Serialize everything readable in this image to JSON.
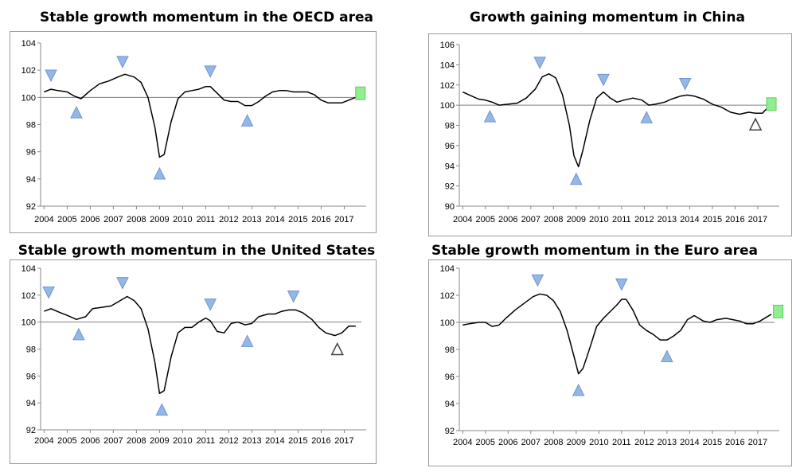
{
  "chart_data": [
    {
      "type": "line",
      "title": "Stable growth momentum in the OECD area",
      "x_ticks": [
        "2004",
        "2005",
        "2006",
        "2007",
        "2008",
        "2009",
        "2010",
        "2011",
        "2012",
        "2013",
        "2014",
        "2015",
        "2016",
        "2017"
      ],
      "y_ticks": [
        "92",
        "94",
        "96",
        "98",
        "100",
        "102",
        "104"
      ],
      "ylim": [
        92,
        104
      ],
      "reference_line": 100,
      "grid": false,
      "series": [
        {
          "x": [
            2004.0,
            2004.3,
            2004.6,
            2005.0,
            2005.3,
            2005.6,
            2006.0,
            2006.4,
            2006.8,
            2007.2,
            2007.5,
            2007.9,
            2008.2,
            2008.5,
            2008.8,
            2009.0,
            2009.2,
            2009.5,
            2009.8,
            2010.1,
            2010.4,
            2010.7,
            2011.0,
            2011.2,
            2011.5,
            2011.8,
            2012.1,
            2012.4,
            2012.7,
            2013.0,
            2013.3,
            2013.6,
            2013.9,
            2014.2,
            2014.5,
            2014.8,
            2015.1,
            2015.4,
            2015.7,
            2016.0,
            2016.3,
            2016.6,
            2016.9,
            2017.2,
            2017.5
          ],
          "values": [
            100.4,
            100.6,
            100.5,
            100.4,
            100.1,
            99.9,
            100.5,
            101.0,
            101.2,
            101.5,
            101.7,
            101.5,
            101.1,
            100.0,
            97.8,
            95.6,
            95.8,
            98.2,
            99.9,
            100.4,
            100.5,
            100.6,
            100.8,
            100.8,
            100.3,
            99.8,
            99.7,
            99.7,
            99.4,
            99.4,
            99.7,
            100.1,
            100.4,
            100.5,
            100.5,
            100.4,
            100.4,
            100.4,
            100.2,
            99.8,
            99.6,
            99.6,
            99.6,
            99.8,
            100.0
          ]
        }
      ],
      "markers": [
        {
          "type": "down",
          "x": 2004.3,
          "y": 101.6
        },
        {
          "type": "up",
          "x": 2005.4,
          "y": 98.9
        },
        {
          "type": "down",
          "x": 2007.4,
          "y": 102.6
        },
        {
          "type": "up",
          "x": 2009.0,
          "y": 94.4
        },
        {
          "type": "down",
          "x": 2011.2,
          "y": 101.9
        },
        {
          "type": "up",
          "x": 2012.8,
          "y": 98.3
        },
        {
          "type": "square",
          "x": 2017.7,
          "y": 100.3
        }
      ]
    },
    {
      "type": "line",
      "title": "Growth gaining momentum in China",
      "x_ticks": [
        "2004",
        "2005",
        "2006",
        "2007",
        "2008",
        "2009",
        "2010",
        "2011",
        "2012",
        "2013",
        "2014",
        "2015",
        "2016",
        "2017"
      ],
      "y_ticks": [
        "90",
        "92",
        "94",
        "96",
        "98",
        "100",
        "102",
        "104",
        "106"
      ],
      "ylim": [
        90,
        106
      ],
      "reference_line": 100,
      "grid": false,
      "series": [
        {
          "x": [
            2004.0,
            2004.3,
            2004.7,
            2005.0,
            2005.3,
            2005.6,
            2006.0,
            2006.4,
            2006.8,
            2007.2,
            2007.5,
            2007.8,
            2008.1,
            2008.4,
            2008.7,
            2008.9,
            2009.1,
            2009.3,
            2009.6,
            2009.9,
            2010.2,
            2010.5,
            2010.8,
            2011.1,
            2011.5,
            2011.9,
            2012.2,
            2012.5,
            2012.9,
            2013.2,
            2013.6,
            2013.9,
            2014.2,
            2014.6,
            2015.0,
            2015.4,
            2015.8,
            2016.2,
            2016.6,
            2016.9,
            2017.2,
            2017.5
          ],
          "values": [
            101.3,
            101.0,
            100.6,
            100.5,
            100.3,
            100.0,
            100.1,
            100.2,
            100.7,
            101.6,
            102.8,
            103.1,
            102.7,
            101.0,
            98.0,
            95.0,
            93.9,
            95.6,
            98.5,
            100.7,
            101.3,
            100.7,
            100.3,
            100.5,
            100.7,
            100.5,
            100.0,
            100.1,
            100.3,
            100.6,
            100.9,
            101.0,
            100.9,
            100.6,
            100.1,
            99.8,
            99.3,
            99.1,
            99.3,
            99.2,
            99.2,
            99.9
          ]
        }
      ],
      "markers": [
        {
          "type": "up",
          "x": 2005.2,
          "y": 98.9
        },
        {
          "type": "down",
          "x": 2007.4,
          "y": 104.2
        },
        {
          "type": "up",
          "x": 2009.0,
          "y": 92.7
        },
        {
          "type": "down",
          "x": 2010.2,
          "y": 102.5
        },
        {
          "type": "up",
          "x": 2012.1,
          "y": 98.8
        },
        {
          "type": "down",
          "x": 2013.8,
          "y": 102.1
        },
        {
          "type": "up-hollow",
          "x": 2016.9,
          "y": 98.1
        },
        {
          "type": "square",
          "x": 2017.6,
          "y": 100.1
        }
      ]
    },
    {
      "type": "line",
      "title": "Stable growth momentum in the United States",
      "x_ticks": [
        "2004",
        "2005",
        "2006",
        "2007",
        "2008",
        "2009",
        "2010",
        "2011",
        "2012",
        "2013",
        "2014",
        "2015",
        "2016",
        "2017"
      ],
      "y_ticks": [
        "92",
        "94",
        "96",
        "98",
        "100",
        "102",
        "104"
      ],
      "ylim": [
        92,
        104
      ],
      "reference_line": 100,
      "grid": false,
      "series": [
        {
          "x": [
            2004.0,
            2004.3,
            2004.7,
            2005.0,
            2005.4,
            2005.8,
            2006.1,
            2006.5,
            2006.9,
            2007.3,
            2007.6,
            2007.9,
            2008.2,
            2008.5,
            2008.8,
            2009.0,
            2009.2,
            2009.5,
            2009.8,
            2010.1,
            2010.4,
            2010.7,
            2011.0,
            2011.2,
            2011.5,
            2011.8,
            2012.1,
            2012.4,
            2012.7,
            2013.0,
            2013.3,
            2013.7,
            2014.0,
            2014.3,
            2014.6,
            2014.9,
            2015.2,
            2015.6,
            2015.9,
            2016.2,
            2016.6,
            2016.9,
            2017.2,
            2017.5
          ],
          "values": [
            100.8,
            101.0,
            100.7,
            100.5,
            100.2,
            100.4,
            101.0,
            101.1,
            101.2,
            101.6,
            101.9,
            101.6,
            101.0,
            99.5,
            97.0,
            94.7,
            94.9,
            97.4,
            99.2,
            99.6,
            99.6,
            100.0,
            100.3,
            100.1,
            99.3,
            99.2,
            99.9,
            100.0,
            99.8,
            99.9,
            100.4,
            100.6,
            100.6,
            100.8,
            100.9,
            100.9,
            100.7,
            100.2,
            99.6,
            99.2,
            99.0,
            99.2,
            99.7,
            99.7
          ]
        }
      ],
      "markers": [
        {
          "type": "down",
          "x": 2004.2,
          "y": 102.2
        },
        {
          "type": "up",
          "x": 2005.5,
          "y": 99.1
        },
        {
          "type": "down",
          "x": 2007.4,
          "y": 102.9
        },
        {
          "type": "up",
          "x": 2009.1,
          "y": 93.5
        },
        {
          "type": "down",
          "x": 2011.2,
          "y": 101.3
        },
        {
          "type": "up",
          "x": 2012.8,
          "y": 98.6
        },
        {
          "type": "down",
          "x": 2014.8,
          "y": 101.9
        },
        {
          "type": "up-hollow",
          "x": 2016.7,
          "y": 98.0
        }
      ]
    },
    {
      "type": "line",
      "title": "Stable growth momentum in the Euro area",
      "x_ticks": [
        "2004",
        "2005",
        "2006",
        "2007",
        "2008",
        "2009",
        "2010",
        "2011",
        "2012",
        "2013",
        "2014",
        "2015",
        "2016",
        "2017"
      ],
      "y_ticks": [
        "92",
        "94",
        "96",
        "98",
        "100",
        "102",
        "104"
      ],
      "ylim": [
        92,
        104
      ],
      "reference_line": 100,
      "grid": false,
      "series": [
        {
          "x": [
            2004.0,
            2004.3,
            2004.7,
            2005.0,
            2005.3,
            2005.6,
            2005.9,
            2006.3,
            2006.7,
            2007.1,
            2007.4,
            2007.7,
            2008.0,
            2008.3,
            2008.6,
            2008.9,
            2009.1,
            2009.3,
            2009.6,
            2009.9,
            2010.2,
            2010.5,
            2010.8,
            2011.0,
            2011.2,
            2011.5,
            2011.8,
            2012.1,
            2012.4,
            2012.7,
            2013.0,
            2013.3,
            2013.6,
            2013.9,
            2014.2,
            2014.6,
            2014.9,
            2015.2,
            2015.6,
            2015.9,
            2016.2,
            2016.5,
            2016.8,
            2017.1,
            2017.4,
            2017.6
          ],
          "values": [
            99.8,
            99.9,
            100.0,
            100.0,
            99.7,
            99.8,
            100.3,
            100.9,
            101.4,
            101.9,
            102.1,
            102.0,
            101.6,
            100.8,
            99.4,
            97.5,
            96.2,
            96.6,
            98.1,
            99.7,
            100.3,
            100.8,
            101.3,
            101.7,
            101.7,
            100.9,
            99.8,
            99.4,
            99.1,
            98.7,
            98.7,
            99.0,
            99.4,
            100.2,
            100.5,
            100.1,
            100.0,
            100.2,
            100.3,
            100.2,
            100.1,
            99.9,
            99.9,
            100.1,
            100.4,
            100.6
          ]
        }
      ],
      "markers": [
        {
          "type": "down",
          "x": 2007.3,
          "y": 103.1
        },
        {
          "type": "up",
          "x": 2009.1,
          "y": 95.0
        },
        {
          "type": "down",
          "x": 2011.0,
          "y": 102.8
        },
        {
          "type": "up",
          "x": 2013.0,
          "y": 97.5
        },
        {
          "type": "square",
          "x": 2017.9,
          "y": 100.8
        }
      ]
    }
  ]
}
